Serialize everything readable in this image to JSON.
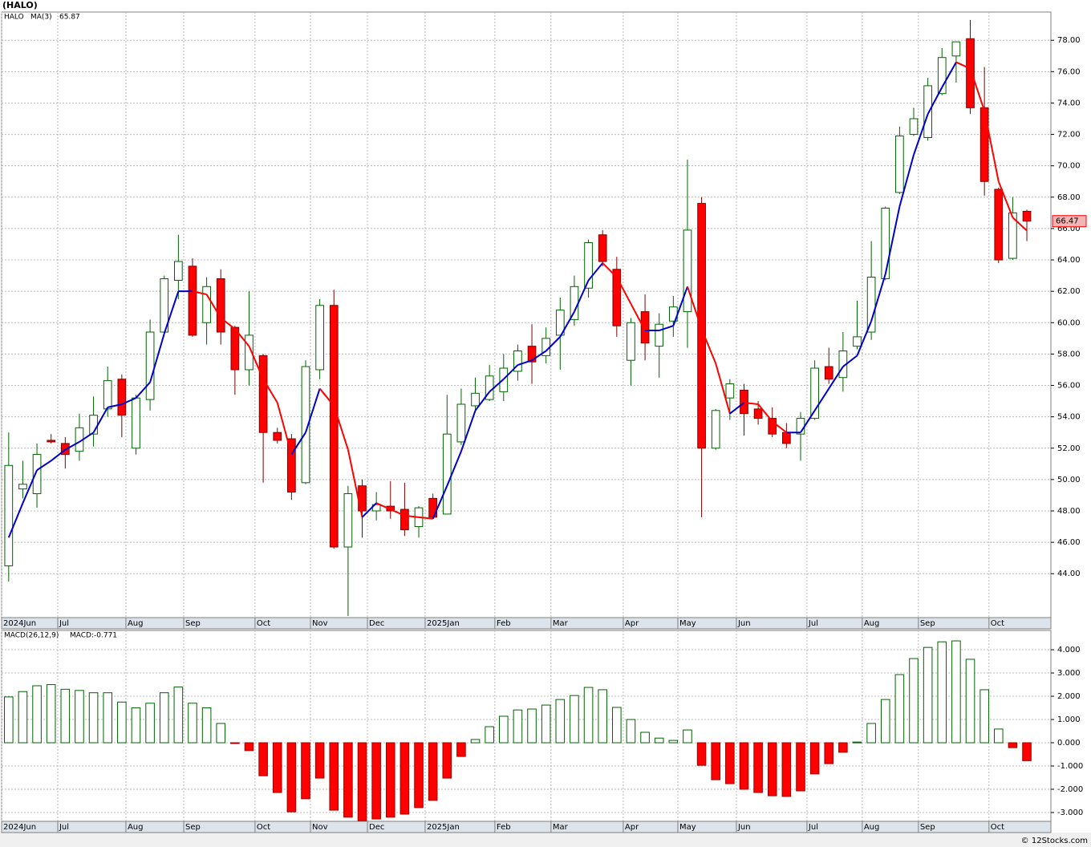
{
  "title": "(HALO)",
  "footer": "© 12Stocks.com",
  "chart_data": [
    {
      "type": "candlestick",
      "legend_symbol": "HALO",
      "up_color": "#006400",
      "down_color": "#ff0000",
      "open": [
        44.5,
        49.4,
        49.1,
        52.5,
        52.3,
        51.8,
        52.9,
        54.5,
        56.4,
        52.0,
        55.1,
        59.4,
        62.7,
        63.6,
        60.0,
        62.8,
        59.7,
        57.0,
        57.9,
        53.0,
        52.6,
        49.8,
        57.0,
        61.1,
        45.7,
        49.6,
        48.0,
        48.3,
        48.1,
        47.0,
        48.8,
        47.8,
        52.4,
        54.7,
        55.1,
        55.6,
        56.9,
        58.5,
        57.9,
        59.2,
        60.2,
        62.2,
        65.6,
        63.4,
        57.6,
        60.7,
        58.5,
        60.1,
        60.7,
        67.6,
        52.0,
        55.2,
        55.7,
        54.5,
        53.9,
        53.0,
        52.9,
        53.9,
        57.2,
        56.5,
        58.5,
        59.4,
        62.8,
        68.3,
        72.0,
        71.8,
        74.6,
        77.0,
        78.1,
        73.7,
        68.5,
        64.1,
        67.1
      ],
      "high": [
        53.0,
        51.2,
        52.3,
        52.9,
        52.7,
        54.2,
        55.3,
        57.2,
        56.7,
        55.4,
        60.2,
        63.0,
        65.6,
        64.1,
        62.9,
        63.4,
        59.8,
        62.0,
        58.0,
        53.3,
        52.9,
        57.6,
        61.5,
        62.1,
        49.6,
        50.0,
        49.2,
        49.9,
        49.8,
        48.3,
        49.1,
        55.4,
        55.8,
        56.5,
        57.3,
        58.0,
        58.6,
        59.9,
        59.7,
        61.6,
        63.0,
        65.3,
        65.9,
        64.2,
        60.3,
        61.8,
        60.6,
        61.7,
        70.4,
        68.0,
        54.5,
        56.4,
        56.1,
        55.0,
        54.6,
        53.6,
        54.3,
        57.6,
        58.4,
        59.4,
        61.4,
        65.2,
        67.4,
        72.5,
        73.7,
        75.6,
        77.5,
        77.9,
        79.3,
        76.3,
        68.6,
        68.0,
        67.2
      ],
      "low": [
        43.5,
        48.8,
        48.2,
        52.3,
        50.7,
        51.2,
        52.1,
        54.0,
        52.7,
        51.6,
        54.4,
        59.3,
        61.5,
        59.1,
        58.6,
        58.6,
        55.4,
        56.0,
        49.8,
        52.3,
        48.7,
        49.7,
        56.4,
        45.6,
        41.3,
        46.3,
        47.4,
        47.5,
        46.4,
        46.3,
        47.5,
        47.8,
        52.2,
        54.3,
        55.0,
        55.0,
        56.3,
        56.1,
        57.4,
        57.0,
        59.8,
        61.6,
        63.6,
        59.1,
        56.0,
        57.6,
        56.5,
        59.1,
        58.4,
        47.6,
        51.9,
        53.8,
        52.8,
        53.5,
        52.7,
        52.0,
        51.2,
        53.8,
        56.1,
        55.6,
        58.3,
        58.9,
        62.7,
        68.2,
        71.9,
        71.6,
        74.5,
        75.3,
        73.3,
        68.1,
        63.8,
        64.0,
        65.2
      ],
      "close": [
        50.9,
        49.7,
        51.6,
        52.4,
        51.6,
        53.3,
        54.1,
        56.3,
        54.1,
        55.2,
        59.4,
        62.8,
        63.9,
        59.2,
        62.3,
        59.4,
        57.0,
        59.2,
        53.0,
        52.5,
        49.2,
        57.2,
        61.1,
        45.7,
        49.1,
        48.0,
        48.4,
        48.0,
        46.8,
        48.2,
        47.6,
        52.9,
        54.8,
        55.5,
        56.6,
        57.1,
        58.2,
        57.5,
        59.0,
        60.8,
        62.3,
        65.1,
        63.9,
        59.8,
        60.0,
        58.7,
        59.9,
        61.0,
        65.9,
        52.0,
        54.4,
        56.1,
        54.2,
        53.9,
        52.9,
        52.3,
        53.9,
        57.1,
        56.4,
        58.2,
        59.1,
        62.9,
        67.3,
        71.9,
        73.0,
        75.1,
        76.9,
        77.9,
        73.7,
        69.0,
        64.0,
        67.0,
        66.47
      ],
      "ma": {
        "name": "MA(3)",
        "up_color": "#0000cc",
        "down_color": "#ff0000",
        "values": [
          46.3,
          48.5,
          50.6,
          51.2,
          51.9,
          52.4,
          53.0,
          54.6,
          54.8,
          55.2,
          56.2,
          59.3,
          62.0,
          62.0,
          61.8,
          60.3,
          59.6,
          58.5,
          56.4,
          54.9,
          51.6,
          53.0,
          55.8,
          54.7,
          51.9,
          47.6,
          48.5,
          48.1,
          47.7,
          47.6,
          47.5,
          49.6,
          51.8,
          54.4,
          55.6,
          56.4,
          57.3,
          57.6,
          58.2,
          59.1,
          60.7,
          62.7,
          63.8,
          62.9,
          61.2,
          59.5,
          59.5,
          59.8,
          62.3,
          59.6,
          57.4,
          54.2,
          54.9,
          54.8,
          53.7,
          53.0,
          53.0,
          54.4,
          55.8,
          57.2,
          57.9,
          60.1,
          63.1,
          67.4,
          70.7,
          73.3,
          75.0,
          76.6,
          76.2,
          73.5,
          69.0,
          66.7,
          65.87
        ]
      },
      "ylim": [
        41.2,
        79.8
      ],
      "yticks": [
        {
          "value": 44,
          "label": "44.00"
        },
        {
          "value": 46,
          "label": "46.00"
        },
        {
          "value": 48,
          "label": "48.00"
        },
        {
          "value": 50,
          "label": "50.00"
        },
        {
          "value": 52,
          "label": "52.00"
        },
        {
          "value": 54,
          "label": "54.00"
        },
        {
          "value": 56,
          "label": "56.00"
        },
        {
          "value": 58,
          "label": "58.00"
        },
        {
          "value": 60,
          "label": "60.00"
        },
        {
          "value": 62,
          "label": "62.00"
        },
        {
          "value": 64,
          "label": "64.00"
        },
        {
          "value": 66,
          "label": "66.00"
        },
        {
          "value": 68,
          "label": "68.00"
        },
        {
          "value": 70,
          "label": "70.00"
        },
        {
          "value": 72,
          "label": "72.00"
        },
        {
          "value": 74,
          "label": "74.00"
        },
        {
          "value": 76,
          "label": "76.00"
        },
        {
          "value": 78,
          "label": "78.00"
        }
      ],
      "xticks": [
        {
          "value": -0.5,
          "label": "2024Jun"
        },
        {
          "value": 3.47,
          "label": "Jul"
        },
        {
          "value": 8.29,
          "label": "Aug"
        },
        {
          "value": 12.38,
          "label": "Sep"
        },
        {
          "value": 17.42,
          "label": "Oct"
        },
        {
          "value": 21.34,
          "label": "Nov"
        },
        {
          "value": 25.37,
          "label": "Dec"
        },
        {
          "value": 29.45,
          "label": "2025Jan"
        },
        {
          "value": 34.38,
          "label": "Feb"
        },
        {
          "value": 38.35,
          "label": "Mar"
        },
        {
          "value": 43.46,
          "label": "Apr"
        },
        {
          "value": 47.32,
          "label": "May"
        },
        {
          "value": 51.46,
          "label": "Jun"
        },
        {
          "value": 56.45,
          "label": "Jul"
        },
        {
          "value": 60.36,
          "label": "Aug"
        },
        {
          "value": 64.33,
          "label": "Sep"
        },
        {
          "value": 69.32,
          "label": "Oct"
        }
      ],
      "grid": true
    },
    {
      "type": "bar",
      "legend": "MACD(26,12,9)",
      "value_legend": "MACD:-0.771",
      "pos_color": "#006400",
      "neg_color": "#ff0000",
      "values": [
        1.97,
        2.2,
        2.45,
        2.5,
        2.3,
        2.25,
        2.15,
        2.15,
        1.75,
        1.5,
        1.7,
        2.15,
        2.4,
        1.7,
        1.5,
        0.83,
        -0.02,
        -0.34,
        -1.42,
        -2.14,
        -2.97,
        -2.41,
        -1.52,
        -2.9,
        -3.2,
        -3.35,
        -3.28,
        -3.2,
        -3.07,
        -2.79,
        -2.48,
        -1.52,
        -0.59,
        0.14,
        0.69,
        1.14,
        1.41,
        1.45,
        1.62,
        1.86,
        2.03,
        2.38,
        2.28,
        1.52,
        1.0,
        0.45,
        0.2,
        0.1,
        0.55,
        -0.97,
        -1.59,
        -1.76,
        -2.0,
        -2.14,
        -2.28,
        -2.31,
        -2.07,
        -1.34,
        -0.9,
        -0.41,
        0.03,
        0.83,
        1.86,
        2.93,
        3.62,
        4.1,
        4.34,
        4.38,
        3.59,
        2.28,
        0.59,
        -0.21,
        -0.771
      ],
      "ylim": [
        -3.38,
        4.83
      ],
      "yticks": [
        {
          "value": -3,
          "label": "-3.000"
        },
        {
          "value": -2,
          "label": "-2.000"
        },
        {
          "value": -1,
          "label": "-1.000"
        },
        {
          "value": 0,
          "label": "0.000"
        },
        {
          "value": 1,
          "label": "1.000"
        },
        {
          "value": 2,
          "label": "2.000"
        },
        {
          "value": 3,
          "label": "3.000"
        },
        {
          "value": 4,
          "label": "4.000"
        }
      ],
      "grid": true
    }
  ]
}
